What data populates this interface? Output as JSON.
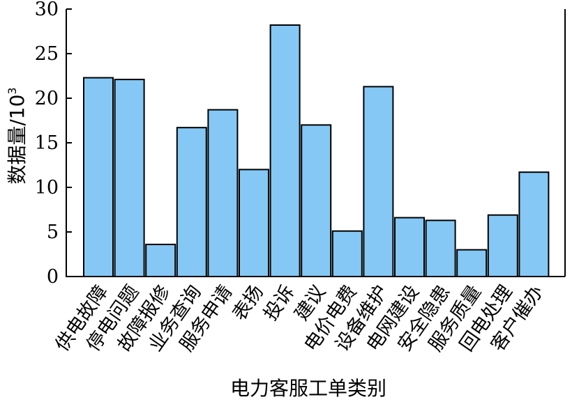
{
  "chart_data": {
    "type": "bar",
    "categories": [
      "供电故障",
      "停电问题",
      "故障报修",
      "业务查询",
      "服务申请",
      "表扬",
      "投诉",
      "建议",
      "电价电费",
      "设备维护",
      "电网建设",
      "安全隐患",
      "服务质量",
      "回电处理",
      "客户催办"
    ],
    "values": [
      22.3,
      22.1,
      3.6,
      16.7,
      18.7,
      12.0,
      28.2,
      17.0,
      5.1,
      21.3,
      6.6,
      6.3,
      3.0,
      6.9,
      11.7
    ],
    "title": "",
    "xlabel": "电力客服工单类别",
    "ylabel_main": "数据量/10",
    "ylabel_sup": "3",
    "ylim": [
      0,
      30
    ],
    "yticks": [
      0,
      5,
      10,
      15,
      20,
      25,
      30
    ],
    "grid": false,
    "bar_color": "#85c8f5",
    "edge_color": "#000000"
  }
}
